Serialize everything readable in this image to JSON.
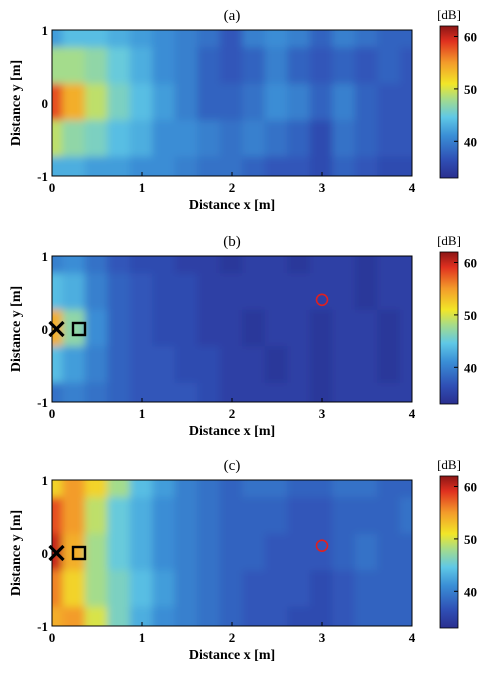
{
  "chart_data": [
    {
      "type": "heatmap",
      "panel_label": "(a)",
      "xlabel": "Distance x [m]",
      "ylabel": "Distance y [m]",
      "xticks": [
        "0",
        "1",
        "2",
        "3",
        "4"
      ],
      "yticks": [
        "-1",
        "0",
        "1"
      ],
      "xlim": [
        0,
        4
      ],
      "ylim": [
        -1,
        1
      ],
      "colorbar": {
        "unit": "[dB]",
        "ticks": [
          "40",
          "50",
          "60"
        ],
        "range": [
          33,
          62
        ]
      },
      "x": [
        0.0,
        0.25,
        0.5,
        0.75,
        1.0,
        1.25,
        1.5,
        1.75,
        2.0,
        2.25,
        2.5,
        2.75,
        3.0,
        3.25,
        3.5,
        3.75,
        4.0
      ],
      "y": [
        1.0,
        0.5,
        0.0,
        -0.5,
        -1.0
      ],
      "values": [
        [
          42,
          44,
          44,
          43,
          42,
          41,
          40,
          39,
          37,
          40,
          41,
          40,
          38,
          40,
          39,
          38,
          38
        ],
        [
          48,
          48,
          47,
          45,
          43,
          41,
          40,
          38,
          37,
          38,
          40,
          38,
          37,
          38,
          37,
          38,
          37
        ],
        [
          58,
          54,
          49,
          46,
          44,
          42,
          40,
          38,
          38,
          39,
          41,
          40,
          38,
          40,
          38,
          37,
          37
        ],
        [
          49,
          47,
          46,
          44,
          43,
          41,
          41,
          40,
          39,
          40,
          39,
          38,
          36,
          39,
          38,
          37,
          37
        ],
        [
          43,
          43,
          42,
          42,
          41,
          41,
          40,
          39,
          39,
          38,
          37,
          37,
          36,
          38,
          37,
          36,
          36
        ]
      ],
      "markers": []
    },
    {
      "type": "heatmap",
      "panel_label": "(b)",
      "xlabel": "Distance x [m]",
      "ylabel": "Distance y [m]",
      "xticks": [
        "0",
        "1",
        "2",
        "3",
        "4"
      ],
      "yticks": [
        "-1",
        "0",
        "1"
      ],
      "xlim": [
        0,
        4
      ],
      "ylim": [
        -1,
        1
      ],
      "colorbar": {
        "unit": "[dB]",
        "ticks": [
          "40",
          "50",
          "60"
        ],
        "range": [
          33,
          62
        ]
      },
      "x": [
        0.0,
        0.25,
        0.5,
        0.75,
        1.0,
        1.25,
        1.5,
        1.75,
        2.0,
        2.25,
        2.5,
        2.75,
        3.0,
        3.25,
        3.5,
        3.75,
        4.0
      ],
      "y": [
        1.0,
        0.5,
        0.0,
        -0.5,
        -1.0
      ],
      "values": [
        [
          40,
          41,
          39,
          37,
          36,
          36,
          35,
          35,
          34,
          35,
          35,
          34,
          35,
          35,
          34,
          35,
          35
        ],
        [
          44,
          43,
          40,
          38,
          37,
          36,
          36,
          35,
          35,
          35,
          35,
          35,
          35,
          35,
          34,
          35,
          35
        ],
        [
          54,
          47,
          41,
          38,
          37,
          36,
          36,
          35,
          35,
          34,
          35,
          35,
          34,
          35,
          35,
          34,
          35
        ],
        [
          44,
          42,
          40,
          38,
          37,
          37,
          36,
          36,
          35,
          35,
          34,
          35,
          34,
          35,
          35,
          34,
          35
        ],
        [
          39,
          40,
          39,
          38,
          37,
          37,
          37,
          36,
          35,
          35,
          35,
          35,
          34,
          35,
          35,
          35,
          35
        ]
      ],
      "markers": [
        {
          "shape": "cross",
          "x": 0.05,
          "y": 0.0
        },
        {
          "shape": "square",
          "x": 0.3,
          "y": 0.0
        },
        {
          "shape": "circle",
          "x": 3.0,
          "y": 0.4
        }
      ]
    },
    {
      "type": "heatmap",
      "panel_label": "(c)",
      "xlabel": "Distance x [m]",
      "ylabel": "Distance y [m]",
      "xticks": [
        "0",
        "1",
        "2",
        "3",
        "4"
      ],
      "yticks": [
        "-1",
        "0",
        "1"
      ],
      "xlim": [
        0,
        4
      ],
      "ylim": [
        -1,
        1
      ],
      "colorbar": {
        "unit": "[dB]",
        "ticks": [
          "40",
          "50",
          "60"
        ],
        "range": [
          33,
          62
        ]
      },
      "x": [
        0.0,
        0.25,
        0.5,
        0.75,
        1.0,
        1.25,
        1.5,
        1.75,
        2.0,
        2.25,
        2.5,
        2.75,
        3.0,
        3.25,
        3.5,
        3.75,
        4.0
      ],
      "y": [
        1.0,
        0.5,
        0.0,
        -0.5,
        -1.0
      ],
      "values": [
        [
          52,
          55,
          52,
          48,
          44,
          42,
          40,
          39,
          38,
          39,
          39,
          38,
          38,
          39,
          39,
          38,
          38
        ],
        [
          58,
          55,
          49,
          45,
          43,
          41,
          40,
          39,
          38,
          38,
          38,
          37,
          37,
          38,
          38,
          38,
          39
        ],
        [
          60,
          54,
          48,
          45,
          43,
          41,
          40,
          39,
          38,
          38,
          37,
          37,
          37,
          38,
          39,
          38,
          38
        ],
        [
          56,
          52,
          48,
          46,
          44,
          42,
          40,
          39,
          38,
          37,
          37,
          37,
          36,
          37,
          38,
          38,
          38
        ],
        [
          54,
          55,
          50,
          46,
          43,
          41,
          40,
          39,
          38,
          37,
          37,
          36,
          36,
          37,
          38,
          38,
          38
        ]
      ],
      "markers": [
        {
          "shape": "cross",
          "x": 0.05,
          "y": 0.0
        },
        {
          "shape": "square",
          "x": 0.3,
          "y": 0.0
        },
        {
          "shape": "circle",
          "x": 3.0,
          "y": 0.1
        }
      ]
    }
  ]
}
